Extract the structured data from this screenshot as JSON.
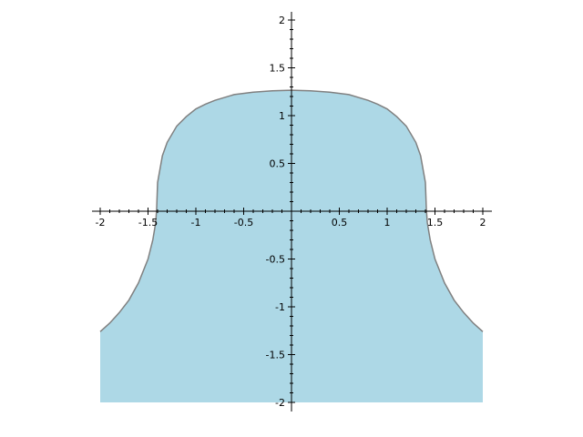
{
  "chart_data": {
    "type": "area",
    "title": "",
    "xlabel": "",
    "ylabel": "",
    "xlim": [
      -2,
      2
    ],
    "ylim": [
      -2,
      2
    ],
    "x_ticks": [
      -2,
      -1.5,
      -1,
      -0.5,
      0.5,
      1,
      1.5,
      2
    ],
    "x_tick_labels": [
      "-2",
      "-1.5",
      "-1",
      "-0.5",
      "0.5",
      "1",
      "1.5",
      "2"
    ],
    "y_ticks": [
      -2,
      -1.5,
      -1,
      -0.5,
      0.5,
      1,
      1.5,
      2
    ],
    "y_tick_labels": [
      "-2",
      "-1.5",
      "-1",
      "-0.5",
      "0.5",
      "1",
      "1.5",
      "2"
    ],
    "fill_color": "#add8e6",
    "curve_color": "#808080",
    "fill_to": -2,
    "grid": false,
    "series": [
      {
        "x": [
          -2,
          -1.9,
          -1.8,
          -1.7,
          -1.6,
          -1.5,
          -1.45,
          -1.42,
          -1.41,
          -1.4,
          -1.35,
          -1.3,
          -1.2,
          -1.1,
          -1.0,
          -0.9,
          -0.8,
          -0.6,
          -0.4,
          -0.2,
          0,
          0.2,
          0.4,
          0.6,
          0.8,
          0.9,
          1.0,
          1.1,
          1.2,
          1.3,
          1.35,
          1.4,
          1.41,
          1.42,
          1.45,
          1.5,
          1.6,
          1.7,
          1.8,
          1.9,
          2
        ],
        "y": [
          -1.26,
          -1.17,
          -1.06,
          -0.93,
          -0.75,
          -0.5,
          -0.3,
          -0.12,
          0.02,
          0.3,
          0.58,
          0.72,
          0.89,
          0.99,
          1.07,
          1.12,
          1.16,
          1.22,
          1.245,
          1.26,
          1.265,
          1.26,
          1.245,
          1.22,
          1.16,
          1.12,
          1.07,
          0.99,
          0.89,
          0.72,
          0.58,
          0.3,
          0.02,
          -0.12,
          -0.3,
          -0.5,
          -0.75,
          -0.93,
          -1.06,
          -1.17,
          -1.26
        ]
      }
    ]
  }
}
